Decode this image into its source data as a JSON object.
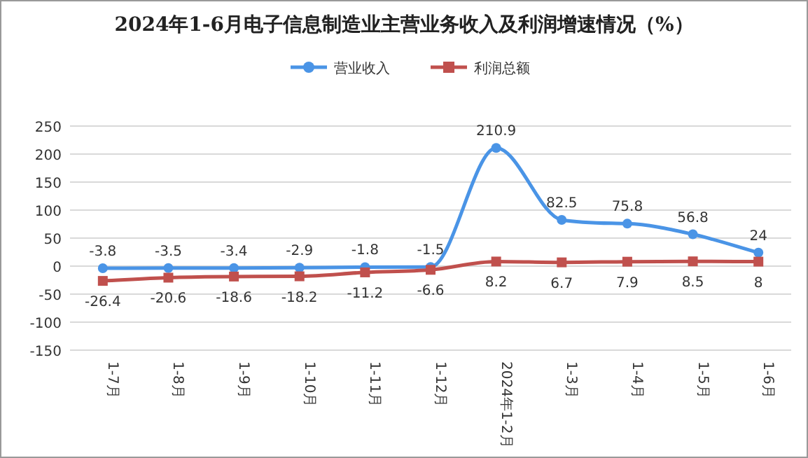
{
  "chart_data": {
    "type": "line",
    "title": "2024年1-6月电子信息制造业主营业务收入及利润增速情况（%）",
    "categories": [
      "1-7月",
      "1-8月",
      "1-9月",
      "1-10月",
      "1-11月",
      "1-12月",
      "2024年1-2月",
      "1-3月",
      "1-4月",
      "1-5月",
      "1-6月"
    ],
    "series": [
      {
        "name": "营业收入",
        "color": "#4a94e6",
        "marker": "circle",
        "values": [
          -3.8,
          -3.5,
          -3.4,
          -2.9,
          -1.8,
          -1.5,
          210.9,
          82.5,
          75.8,
          56.8,
          24
        ]
      },
      {
        "name": "利润总额",
        "color": "#c0504d",
        "marker": "square",
        "values": [
          -26.4,
          -20.6,
          -18.6,
          -18.2,
          -11.2,
          -6.6,
          8.2,
          6.7,
          7.9,
          8.5,
          8
        ]
      }
    ],
    "ylim": [
      -150,
      250
    ],
    "yticks": [
      -150,
      -100,
      -50,
      0,
      50,
      100,
      150,
      200,
      250
    ],
    "grid": "y",
    "legend": "top",
    "data_labels": true
  }
}
